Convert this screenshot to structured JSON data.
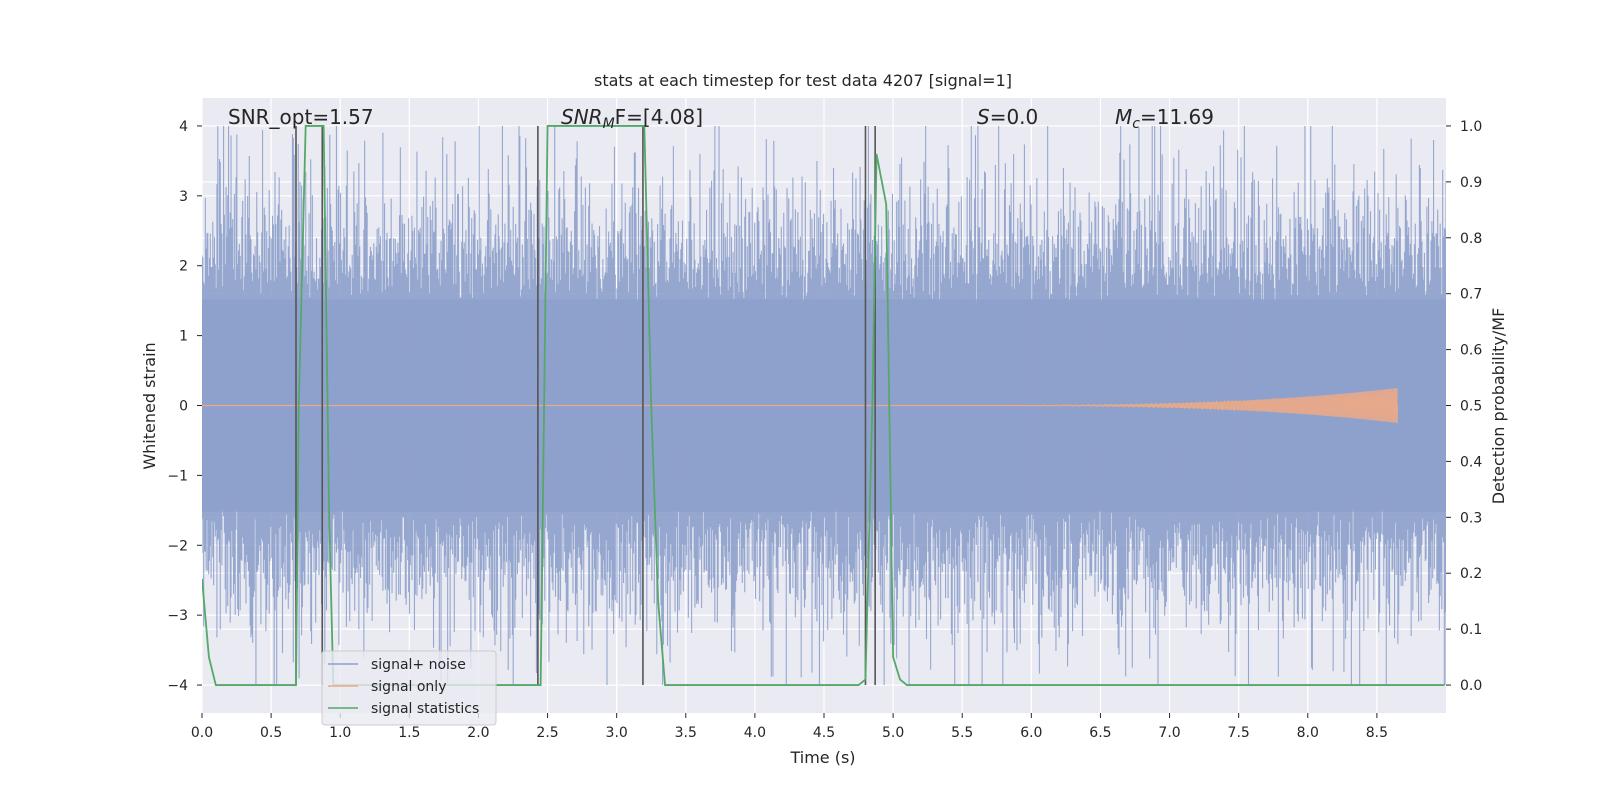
{
  "chart_data": {
    "type": "line",
    "title": "stats at each timestep for test data 4207 [signal=1]",
    "xlabel": "Time (s)",
    "ylabel": "Whitened strain",
    "y2label": "Detection probability/MF",
    "xlim": [
      0.0,
      9.0
    ],
    "ylim": [
      -4.4,
      4.4
    ],
    "y2lim": [
      -0.05,
      1.05
    ],
    "xticks": [
      "0.0",
      "0.5",
      "1.0",
      "1.5",
      "2.0",
      "2.5",
      "3.0",
      "3.5",
      "4.0",
      "4.5",
      "5.0",
      "5.5",
      "6.0",
      "6.5",
      "7.0",
      "7.5",
      "8.0",
      "8.5"
    ],
    "yticks": [
      "4",
      "3",
      "2",
      "1",
      "0",
      "−1",
      "−2",
      "−3",
      "−4"
    ],
    "y2ticks": [
      "1.0",
      "0.9",
      "0.8",
      "0.7",
      "0.6",
      "0.5",
      "0.4",
      "0.3",
      "0.2",
      "0.1",
      "0.0"
    ],
    "grid": true,
    "legend_position": "lower-left",
    "annotations": {
      "snr_opt": "SNR_opt=1.57",
      "snr_mf_base": "SNR",
      "snr_mf_sub": "M",
      "snr_mf_rest": "F=[4.08]",
      "s_base": "S",
      "s_rest": "=0.0",
      "mc_base": "M",
      "mc_sub": "c",
      "mc_rest": "=11.69"
    },
    "vlines": [
      0.68,
      0.87,
      2.43,
      3.19,
      4.8,
      4.87
    ],
    "series": [
      {
        "name": "signal+ noise",
        "color": "#8da0cb",
        "description_values": "whitened noisy strain, dense noise within about ±2 with spikes to about ±4",
        "envelope": {
          "typical": 1.6,
          "peak": 4.0,
          "t_start": 0.0,
          "t_end": 9.0
        }
      },
      {
        "name": "signal only",
        "color": "#e8a98a",
        "chirp": {
          "t_start": 5.4,
          "t_end": 8.65,
          "peak_amplitude": 0.25
        }
      },
      {
        "name": "signal statistics",
        "color": "#55a868",
        "x": [
          0.0,
          0.05,
          0.1,
          0.2,
          0.4,
          0.6,
          0.68,
          0.7,
          0.75,
          0.8,
          0.88,
          0.92,
          0.95,
          1.2,
          1.6,
          2.0,
          2.4,
          2.45,
          2.5,
          2.6,
          3.0,
          3.2,
          3.25,
          3.3,
          3.35,
          3.5,
          4.0,
          4.5,
          4.75,
          4.8,
          4.85,
          4.88,
          4.95,
          5.0,
          5.05,
          5.1,
          5.2,
          5.4,
          5.5,
          6.0,
          7.0,
          8.0,
          8.99
        ],
        "y": [
          0.19,
          0.05,
          0.0,
          0.0,
          0.0,
          0.0,
          0.0,
          0.5,
          1.0,
          1.0,
          1.0,
          0.3,
          0.0,
          0.0,
          0.0,
          0.0,
          0.0,
          0.0,
          1.0,
          1.0,
          1.0,
          1.0,
          0.5,
          0.15,
          0.0,
          0.0,
          0.0,
          0.0,
          0.0,
          0.01,
          0.5,
          0.95,
          0.86,
          0.05,
          0.01,
          0.0,
          0.0,
          0.0,
          0.0,
          0.0,
          0.0,
          0.0,
          0.0
        ]
      }
    ]
  }
}
